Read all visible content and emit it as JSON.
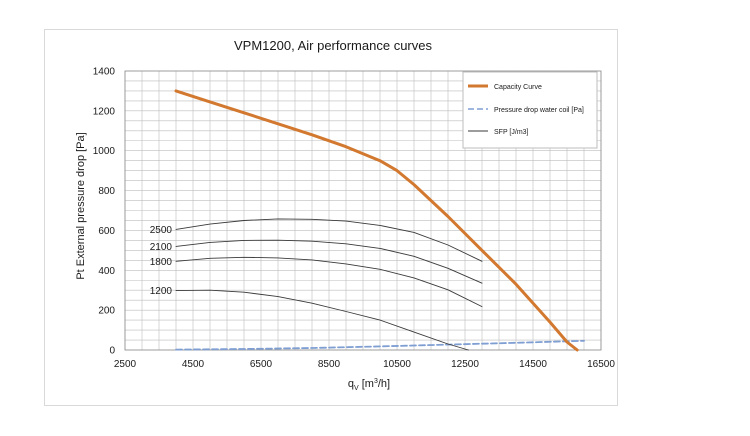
{
  "chart_data": {
    "type": "line",
    "title": "VPM1200, Air performance curves",
    "xlabel": "qv [m3/h]",
    "xlabel_main": "q",
    "xlabel_sub": "V",
    "xlabel_unit_prefix": " [m",
    "xlabel_unit_sup": "3",
    "xlabel_unit_suffix": "/h]",
    "ylabel": "Pt External pressure drop [Pa]",
    "xlim": [
      2500,
      16500
    ],
    "ylim": [
      0,
      1400
    ],
    "xticks": [
      2500,
      4500,
      6500,
      8500,
      10500,
      12500,
      14500,
      16500
    ],
    "yticks": [
      0,
      200,
      400,
      600,
      800,
      1000,
      1200,
      1400
    ],
    "grid": true,
    "legend_position": "top-right",
    "colors": {
      "capacity": "#d2782f",
      "pressure_drop": "#7f9fd3",
      "sfp": "#3a3a3a",
      "grid": "#bdbdbd"
    },
    "series": [
      {
        "name": "Capacity Curve",
        "role": "capacity",
        "x": [
          4000,
          5000,
          6000,
          7000,
          8000,
          9000,
          10000,
          10500,
          11000,
          12000,
          13000,
          14000,
          15000,
          15500,
          15800
        ],
        "y": [
          1300,
          1245,
          1190,
          1135,
          1080,
          1020,
          950,
          900,
          830,
          670,
          500,
          330,
          140,
          40,
          0
        ]
      },
      {
        "name": "Pressure drop water coil [Pa]",
        "role": "pressure_drop",
        "x": [
          4000,
          6000,
          8000,
          10000,
          12000,
          14000,
          16000
        ],
        "y": [
          2,
          5,
          10,
          18,
          27,
          36,
          46
        ]
      },
      {
        "name": "SFP [J/m3]",
        "role": "sfp",
        "x": [
          4000,
          5000,
          6000,
          7000,
          8000,
          9000,
          10000,
          11000,
          12000,
          13000
        ],
        "y": [
          605,
          632,
          650,
          658,
          656,
          647,
          625,
          590,
          527,
          445
        ]
      },
      {
        "name": "2100",
        "role": "sfp",
        "x": [
          4000,
          5000,
          6000,
          7000,
          8000,
          9000,
          10000,
          11000,
          12000,
          13000
        ],
        "y": [
          520,
          540,
          550,
          551,
          546,
          533,
          510,
          470,
          410,
          335
        ]
      },
      {
        "name": "1800",
        "role": "sfp",
        "x": [
          4000,
          5000,
          6000,
          7000,
          8000,
          9000,
          10000,
          11000,
          12000,
          13000
        ],
        "y": [
          445,
          460,
          465,
          462,
          452,
          432,
          405,
          362,
          302,
          218
        ]
      },
      {
        "name": "1200",
        "role": "sfp",
        "x": [
          4000,
          5000,
          6000,
          7000,
          8000,
          9000,
          10000,
          11000,
          12000,
          12600
        ],
        "y": [
          298,
          300,
          290,
          268,
          235,
          193,
          150,
          90,
          30,
          0
        ]
      }
    ],
    "curve_labels": [
      {
        "text": "2500",
        "x": 4000,
        "y": 605
      },
      {
        "text": "2100",
        "x": 4000,
        "y": 520
      },
      {
        "text": "1800",
        "x": 4000,
        "y": 445
      },
      {
        "text": "1200",
        "x": 4000,
        "y": 298
      }
    ]
  }
}
